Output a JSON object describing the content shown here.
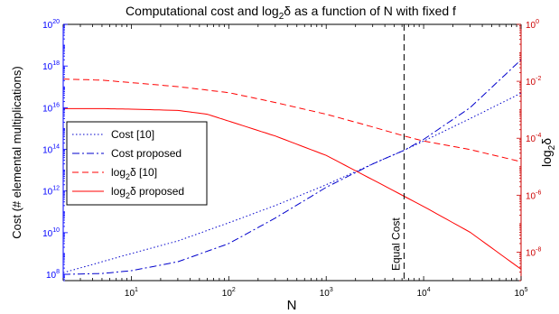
{
  "chart_data": {
    "type": "line",
    "title": {
      "prefix": "Computational cost and log",
      "sub": "2",
      "suffix": "δ as a function of N with fixed f"
    },
    "xlabel": "N",
    "ylabel_left": "Cost (# elemental multiplications)",
    "ylabel_right": {
      "base": "log",
      "sub": "2",
      "sym": "δ"
    },
    "x_scale": "log",
    "xlim": [
      2,
      100000
    ],
    "x_ticks": [
      {
        "value": 10,
        "base": "10",
        "exp": "1"
      },
      {
        "value": 100,
        "base": "10",
        "exp": "2"
      },
      {
        "value": 1000,
        "base": "10",
        "exp": "3"
      },
      {
        "value": 10000,
        "base": "10",
        "exp": "4"
      },
      {
        "value": 100000,
        "base": "10",
        "exp": "5"
      }
    ],
    "y_left": {
      "scale": "log",
      "lim": [
        50000000.0,
        1e+20
      ],
      "color": "#0000ff",
      "ticks": [
        {
          "value": 100000000.0,
          "base": "10",
          "exp": "8"
        },
        {
          "value": 10000000000.0,
          "base": "10",
          "exp": "10"
        },
        {
          "value": 1000000000000.0,
          "base": "10",
          "exp": "12"
        },
        {
          "value": 100000000000000.0,
          "base": "10",
          "exp": "14"
        },
        {
          "value": 1e+16,
          "base": "10",
          "exp": "16"
        },
        {
          "value": 1e+18,
          "base": "10",
          "exp": "18"
        },
        {
          "value": 1e+20,
          "base": "10",
          "exp": "20"
        }
      ]
    },
    "y_right": {
      "scale": "log",
      "lim": [
        1e-09,
        1
      ],
      "color": "#cc0000",
      "ticks": [
        {
          "value": 1e-08,
          "base": "10",
          "exp": "-8"
        },
        {
          "value": 1e-06,
          "base": "10",
          "exp": "-6"
        },
        {
          "value": 0.0001,
          "base": "10",
          "exp": "-4"
        },
        {
          "value": 0.01,
          "base": "10",
          "exp": "-2"
        },
        {
          "value": 1,
          "base": "10",
          "exp": "0"
        }
      ]
    },
    "series": [
      {
        "name": "Cost [10]",
        "axis": "left",
        "color": "#0000cc",
        "dash": "dotted",
        "x": [
          2,
          5,
          10,
          30,
          100,
          300,
          1000,
          3000,
          6300,
          10000,
          30000,
          100000
        ],
        "y": [
          120000000.0,
          400000000.0,
          1000000000.0,
          4000000000.0,
          30000000000.0,
          200000000000.0,
          2000000000000.0,
          20000000000000.0,
          90000000000000.0,
          250000000000000.0,
          3000000000000000.0,
          5e+16
        ]
      },
      {
        "name": "Cost proposed",
        "axis": "left",
        "color": "#0000cc",
        "dash": "dashdot",
        "x": [
          2,
          5,
          10,
          30,
          100,
          300,
          1000,
          3000,
          6300,
          10000,
          30000,
          100000
        ],
        "y": [
          100000000.0,
          110000000.0,
          150000000.0,
          400000000.0,
          3000000000.0,
          50000000000.0,
          1500000000000.0,
          20000000000000.0,
          90000000000000.0,
          300000000000000.0,
          1e+16,
          2e+18
        ]
      },
      {
        "name": "log2δ [10]",
        "axis": "right",
        "color": "#ff0000",
        "dash": "dashed",
        "x": [
          2,
          5,
          10,
          30,
          100,
          300,
          1000,
          3000,
          6300,
          10000,
          30000,
          100000
        ],
        "y": [
          0.012,
          0.011,
          0.009,
          0.0065,
          0.004,
          0.0018,
          0.0007,
          0.00025,
          0.00012,
          8e-05,
          4e-05,
          1.5e-05
        ]
      },
      {
        "name": "log2δ proposed",
        "axis": "right",
        "color": "#ff0000",
        "dash": "solid",
        "x": [
          2,
          5,
          10,
          30,
          60,
          100,
          300,
          1000,
          3000,
          10000,
          30000,
          100000
        ],
        "y": [
          0.0011,
          0.0011,
          0.00105,
          0.00095,
          0.0007,
          0.0004,
          0.00012,
          2.5e-05,
          3.5e-06,
          4e-07,
          5e-08,
          2.5e-09
        ]
      }
    ],
    "annotation": {
      "text": "Equal Cost",
      "x": 6300
    },
    "legend": {
      "placement": "left",
      "entries": [
        {
          "base": "Cost [10]",
          "sub": "",
          "rest": ""
        },
        {
          "base": "Cost proposed",
          "sub": "",
          "rest": ""
        },
        {
          "base": "log",
          "sub": "2",
          "rest": "δ [10]"
        },
        {
          "base": "log",
          "sub": "2",
          "rest": "δ proposed"
        }
      ]
    }
  }
}
